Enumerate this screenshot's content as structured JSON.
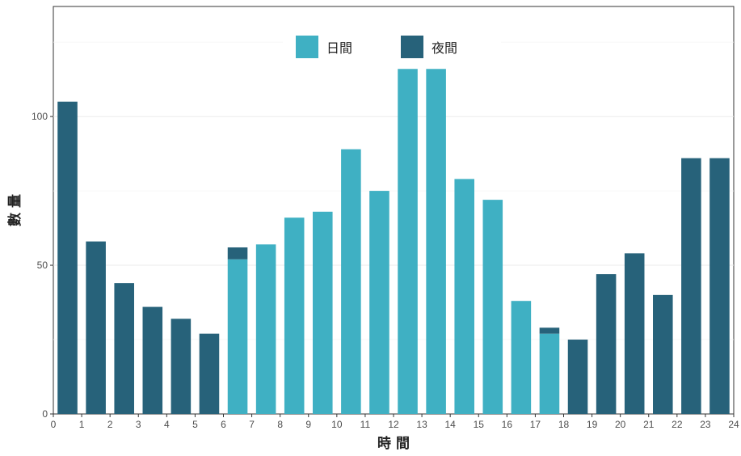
{
  "chart_data": {
    "type": "bar",
    "xlabel": "時 間",
    "ylabel": "數 量",
    "xlim": [
      0,
      24
    ],
    "ylim": [
      0,
      137
    ],
    "x_ticks": [
      0,
      1,
      2,
      3,
      4,
      5,
      6,
      7,
      8,
      9,
      10,
      11,
      12,
      13,
      14,
      15,
      16,
      17,
      18,
      19,
      20,
      21,
      22,
      23,
      24
    ],
    "y_ticks": [
      0,
      50,
      100
    ],
    "grid": true,
    "legend_position": "top-center",
    "colors": {
      "day": "#3fb0c3",
      "night": "#27627a"
    },
    "categories": [
      "0",
      "1",
      "2",
      "3",
      "4",
      "5",
      "6",
      "7",
      "8",
      "9",
      "10",
      "11",
      "12",
      "13",
      "14",
      "15",
      "16",
      "17",
      "18",
      "19",
      "20",
      "21",
      "22",
      "23"
    ],
    "series": [
      {
        "name": "日間",
        "color": "#3fb0c3",
        "values": [
          0,
          0,
          0,
          0,
          0,
          0,
          52,
          57,
          66,
          68,
          89,
          75,
          116,
          116,
          79,
          72,
          38,
          27,
          0,
          0,
          0,
          0,
          0,
          0
        ]
      },
      {
        "name": "夜間",
        "color": "#27627a",
        "values": [
          105,
          58,
          44,
          36,
          32,
          27,
          4,
          0,
          0,
          0,
          0,
          0,
          0,
          0,
          0,
          0,
          0,
          2,
          25,
          47,
          54,
          40,
          86,
          86
        ]
      }
    ]
  }
}
